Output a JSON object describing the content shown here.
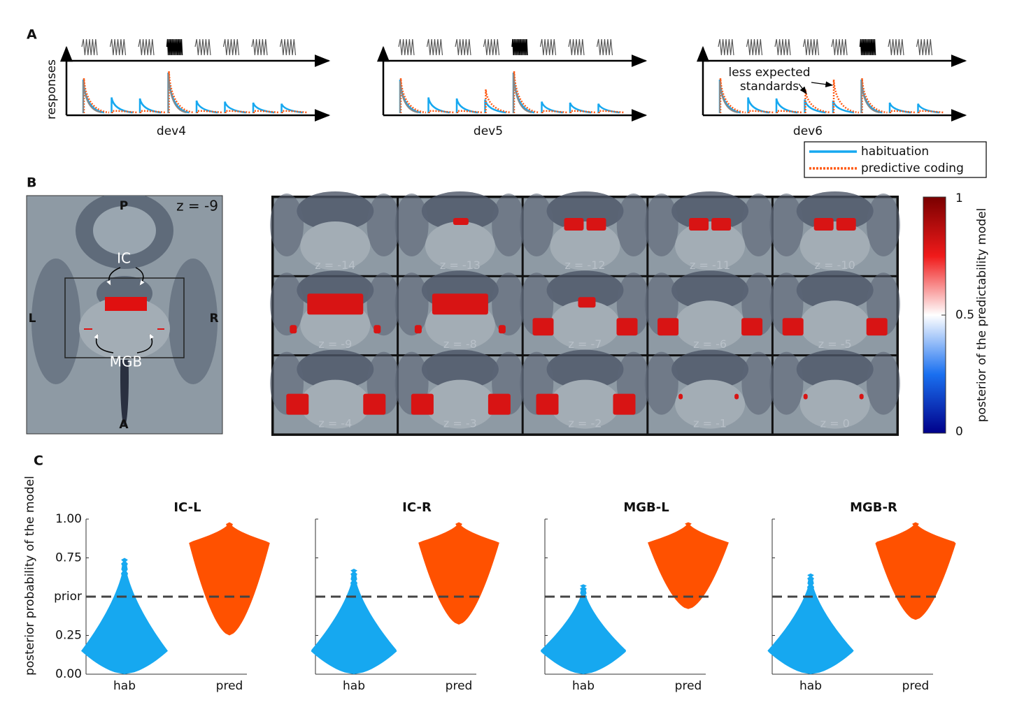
{
  "panel_labels": [
    "A",
    "B",
    "C"
  ],
  "panel_a": {
    "y_label": "responses",
    "subplots": [
      {
        "label": "dev4"
      },
      {
        "label": "dev5"
      },
      {
        "label": "dev6"
      }
    ],
    "annotation_lines": [
      "less expected",
      "standards"
    ],
    "legend": [
      {
        "name": "habituation",
        "color": "#16a8f0"
      },
      {
        "name": "predictive coding",
        "color": "#ff5a14"
      }
    ]
  },
  "panel_b": {
    "orientation": {
      "top": "P",
      "bottom": "A",
      "left": "L",
      "right": "R"
    },
    "overview_slice": "z = -9",
    "region_labels": [
      "IC",
      "MGB"
    ],
    "slices": [
      "z = -14",
      "z = -13",
      "z = -12",
      "z = -11",
      "z = -10",
      "z = -9",
      "z = -8",
      "z = -7",
      "z = -6",
      "z = -5",
      "z = -4",
      "z = -3",
      "z = -2",
      "z = -1",
      "z = 0"
    ],
    "colorbar": {
      "label": "posterior of the predictability model",
      "lim": [
        0,
        1
      ],
      "ticks": [
        0,
        0.5,
        1
      ]
    }
  },
  "chart_data": [
    {
      "type": "violin",
      "title": "IC-L",
      "y_label": "posterior probability of the model",
      "categories": [
        "hab",
        "pred"
      ],
      "violins": [
        {
          "color": "#16a8f0",
          "min": 0.0,
          "mode": 0.15,
          "max": 0.75
        },
        {
          "color": "#ff5100",
          "min": 0.25,
          "mode": 0.85,
          "max": 0.98
        }
      ],
      "ylim": [
        0,
        1
      ],
      "yticks": [
        {
          "value": 0,
          "label": "0.00"
        },
        {
          "value": 0.25,
          "label": "0.25"
        },
        {
          "value": 0.5,
          "label": "prior"
        },
        {
          "value": 0.75,
          "label": "0.75"
        },
        {
          "value": 1,
          "label": "1.00"
        }
      ],
      "hline": 0.5
    },
    {
      "type": "violin",
      "title": "IC-R",
      "categories": [
        "hab",
        "pred"
      ],
      "violins": [
        {
          "color": "#16a8f0",
          "min": 0.0,
          "mode": 0.15,
          "max": 0.68
        },
        {
          "color": "#ff5100",
          "min": 0.32,
          "mode": 0.85,
          "max": 0.98
        }
      ],
      "ylim": [
        0,
        1
      ],
      "hline": 0.5
    },
    {
      "type": "violin",
      "title": "MGB-L",
      "categories": [
        "hab",
        "pred"
      ],
      "violins": [
        {
          "color": "#16a8f0",
          "min": 0.0,
          "mode": 0.15,
          "max": 0.58
        },
        {
          "color": "#ff5100",
          "min": 0.42,
          "mode": 0.85,
          "max": 0.98
        }
      ],
      "ylim": [
        0,
        1
      ],
      "hline": 0.5
    },
    {
      "type": "violin",
      "title": "MGB-R",
      "categories": [
        "hab",
        "pred"
      ],
      "violins": [
        {
          "color": "#16a8f0",
          "min": 0.0,
          "mode": 0.15,
          "max": 0.65
        },
        {
          "color": "#ff5100",
          "min": 0.35,
          "mode": 0.85,
          "max": 0.98
        }
      ],
      "ylim": [
        0,
        1
      ],
      "hline": 0.5
    }
  ]
}
